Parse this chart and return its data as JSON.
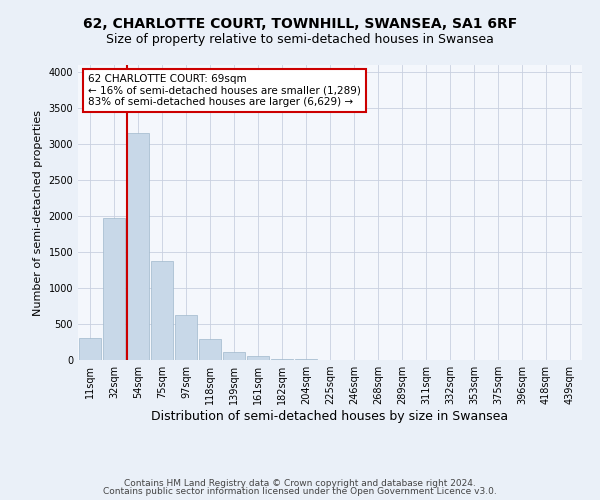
{
  "title": "62, CHARLOTTE COURT, TOWNHILL, SWANSEA, SA1 6RF",
  "subtitle": "Size of property relative to semi-detached houses in Swansea",
  "xlabel": "Distribution of semi-detached houses by size in Swansea",
  "ylabel": "Number of semi-detached properties",
  "footnote1": "Contains HM Land Registry data © Crown copyright and database right 2024.",
  "footnote2": "Contains public sector information licensed under the Open Government Licence v3.0.",
  "bin_labels": [
    "11sqm",
    "32sqm",
    "54sqm",
    "75sqm",
    "97sqm",
    "118sqm",
    "139sqm",
    "161sqm",
    "182sqm",
    "204sqm",
    "225sqm",
    "246sqm",
    "268sqm",
    "289sqm",
    "311sqm",
    "332sqm",
    "353sqm",
    "375sqm",
    "396sqm",
    "418sqm",
    "439sqm"
  ],
  "bar_values": [
    300,
    1980,
    3150,
    1380,
    620,
    290,
    110,
    50,
    20,
    10,
    5,
    5,
    3,
    2,
    1,
    1,
    1,
    1,
    1,
    1,
    1
  ],
  "bar_color": "#c8d8e8",
  "bar_edge_color": "#a0b8cc",
  "property_line_x": 1.55,
  "annotation_title": "62 CHARLOTTE COURT: 69sqm",
  "annotation_line1": "← 16% of semi-detached houses are smaller (1,289)",
  "annotation_line2": "83% of semi-detached houses are larger (6,629) →",
  "annotation_box_color": "#cc0000",
  "ylim": [
    0,
    4100
  ],
  "yticks": [
    0,
    500,
    1000,
    1500,
    2000,
    2500,
    3000,
    3500,
    4000
  ],
  "bg_color": "#eaf0f8",
  "plot_bg_color": "#f4f7fc",
  "grid_color": "#c8d0e0",
  "title_fontsize": 10,
  "subtitle_fontsize": 9,
  "xlabel_fontsize": 9,
  "ylabel_fontsize": 8,
  "tick_fontsize": 7,
  "annot_fontsize": 7.5,
  "footnote_fontsize": 6.5
}
